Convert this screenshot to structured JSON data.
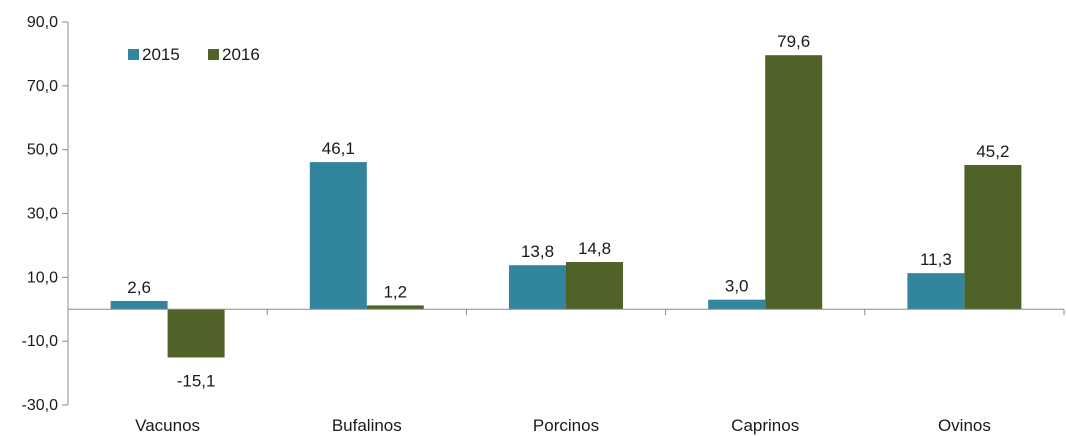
{
  "chart_data": {
    "type": "bar",
    "categories": [
      "Vacunos",
      "Bufalinos",
      "Porcinos",
      "Caprinos",
      "Ovinos"
    ],
    "series": [
      {
        "name": "2015",
        "values": [
          2.6,
          46.1,
          13.8,
          3.0,
          11.3
        ],
        "labels": [
          "2,6",
          "46,1",
          "13,8",
          "3,0",
          "11,3"
        ],
        "color": "#31859c"
      },
      {
        "name": "2016",
        "values": [
          -15.1,
          1.2,
          14.8,
          79.6,
          45.2
        ],
        "labels": [
          "-15,1",
          "1,2",
          "14,8",
          "79,6",
          "45,2"
        ],
        "color": "#4f6228"
      }
    ],
    "y_ticks": [
      90,
      70,
      50,
      30,
      10,
      -10,
      -30
    ],
    "y_tick_labels": [
      "90,0",
      "70,0",
      "50,0",
      "30,0",
      "10,0",
      "-10,0",
      "-30,0"
    ],
    "ylim": [
      -30,
      90
    ],
    "legend_position": "top-left",
    "grid": false,
    "title": "",
    "xlabel": "",
    "ylabel": ""
  }
}
